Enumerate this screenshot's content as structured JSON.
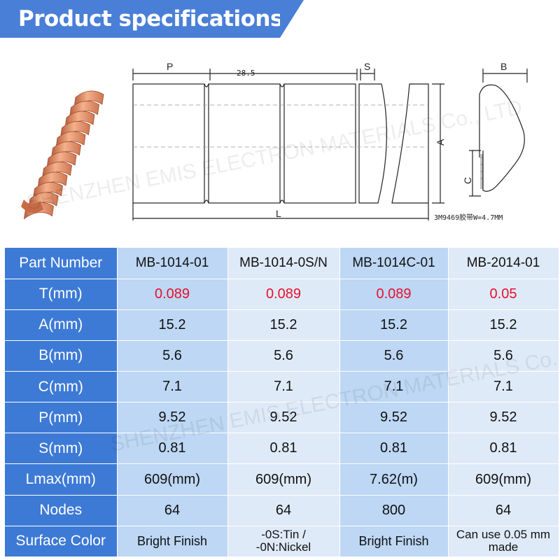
{
  "header": {
    "title": "Product specifications"
  },
  "drawing": {
    "label_p": "P",
    "label_pitch": "28.5",
    "label_s": "S",
    "label_b": "B",
    "label_a": "A",
    "label_c": "C",
    "label_l": "L",
    "tape_note": "3M9469胶带W=4.7MM"
  },
  "watermark": {
    "text": "SHENZHEN EMIS ELECTRON MATERIALS Co., LTD"
  },
  "table": {
    "columns": [
      "Part Number",
      "MB-1014-01",
      "MB-1014-0S/N",
      "MB-1014C-01",
      "MB-2014-01"
    ],
    "rows": [
      {
        "label": "T(mm)",
        "values": [
          "0.089",
          "0.089",
          "0.089",
          "0.05"
        ]
      },
      {
        "label": "A(mm)",
        "values": [
          "15.2",
          "15.2",
          "15.2",
          "15.2"
        ]
      },
      {
        "label": "B(mm)",
        "values": [
          "5.6",
          "5.6",
          "5.6",
          "5.6"
        ]
      },
      {
        "label": "C(mm)",
        "values": [
          "7.1",
          "7.1",
          "7.1",
          "7.1"
        ]
      },
      {
        "label": "P(mm)",
        "values": [
          "9.52",
          "9.52",
          "9.52",
          "9.52"
        ]
      },
      {
        "label": "S(mm)",
        "values": [
          "0.81",
          "0.81",
          "0.81",
          "0.81"
        ]
      },
      {
        "label": "Lmax(mm)",
        "values": [
          "609(mm)",
          "609(mm)",
          "7.62(m)",
          "609(mm)"
        ]
      },
      {
        "label": "Nodes",
        "values": [
          "64",
          "64",
          "800",
          "64"
        ]
      },
      {
        "label": "Surface Color",
        "values": [
          "Bright Finish",
          [
            "-0S:Tin /",
            "-0N:Nickel"
          ],
          "Bright Finish",
          [
            "Can use 0.05 mm",
            "made"
          ]
        ]
      }
    ]
  },
  "colors": {
    "header_blue": "#4a7fd8",
    "row_header_blue": "#3d7ad6",
    "col_dark": "#bdd7f4",
    "col_light": "#dfeaf8",
    "t_value_red": "#e8102a",
    "copper": "#e8926a"
  }
}
